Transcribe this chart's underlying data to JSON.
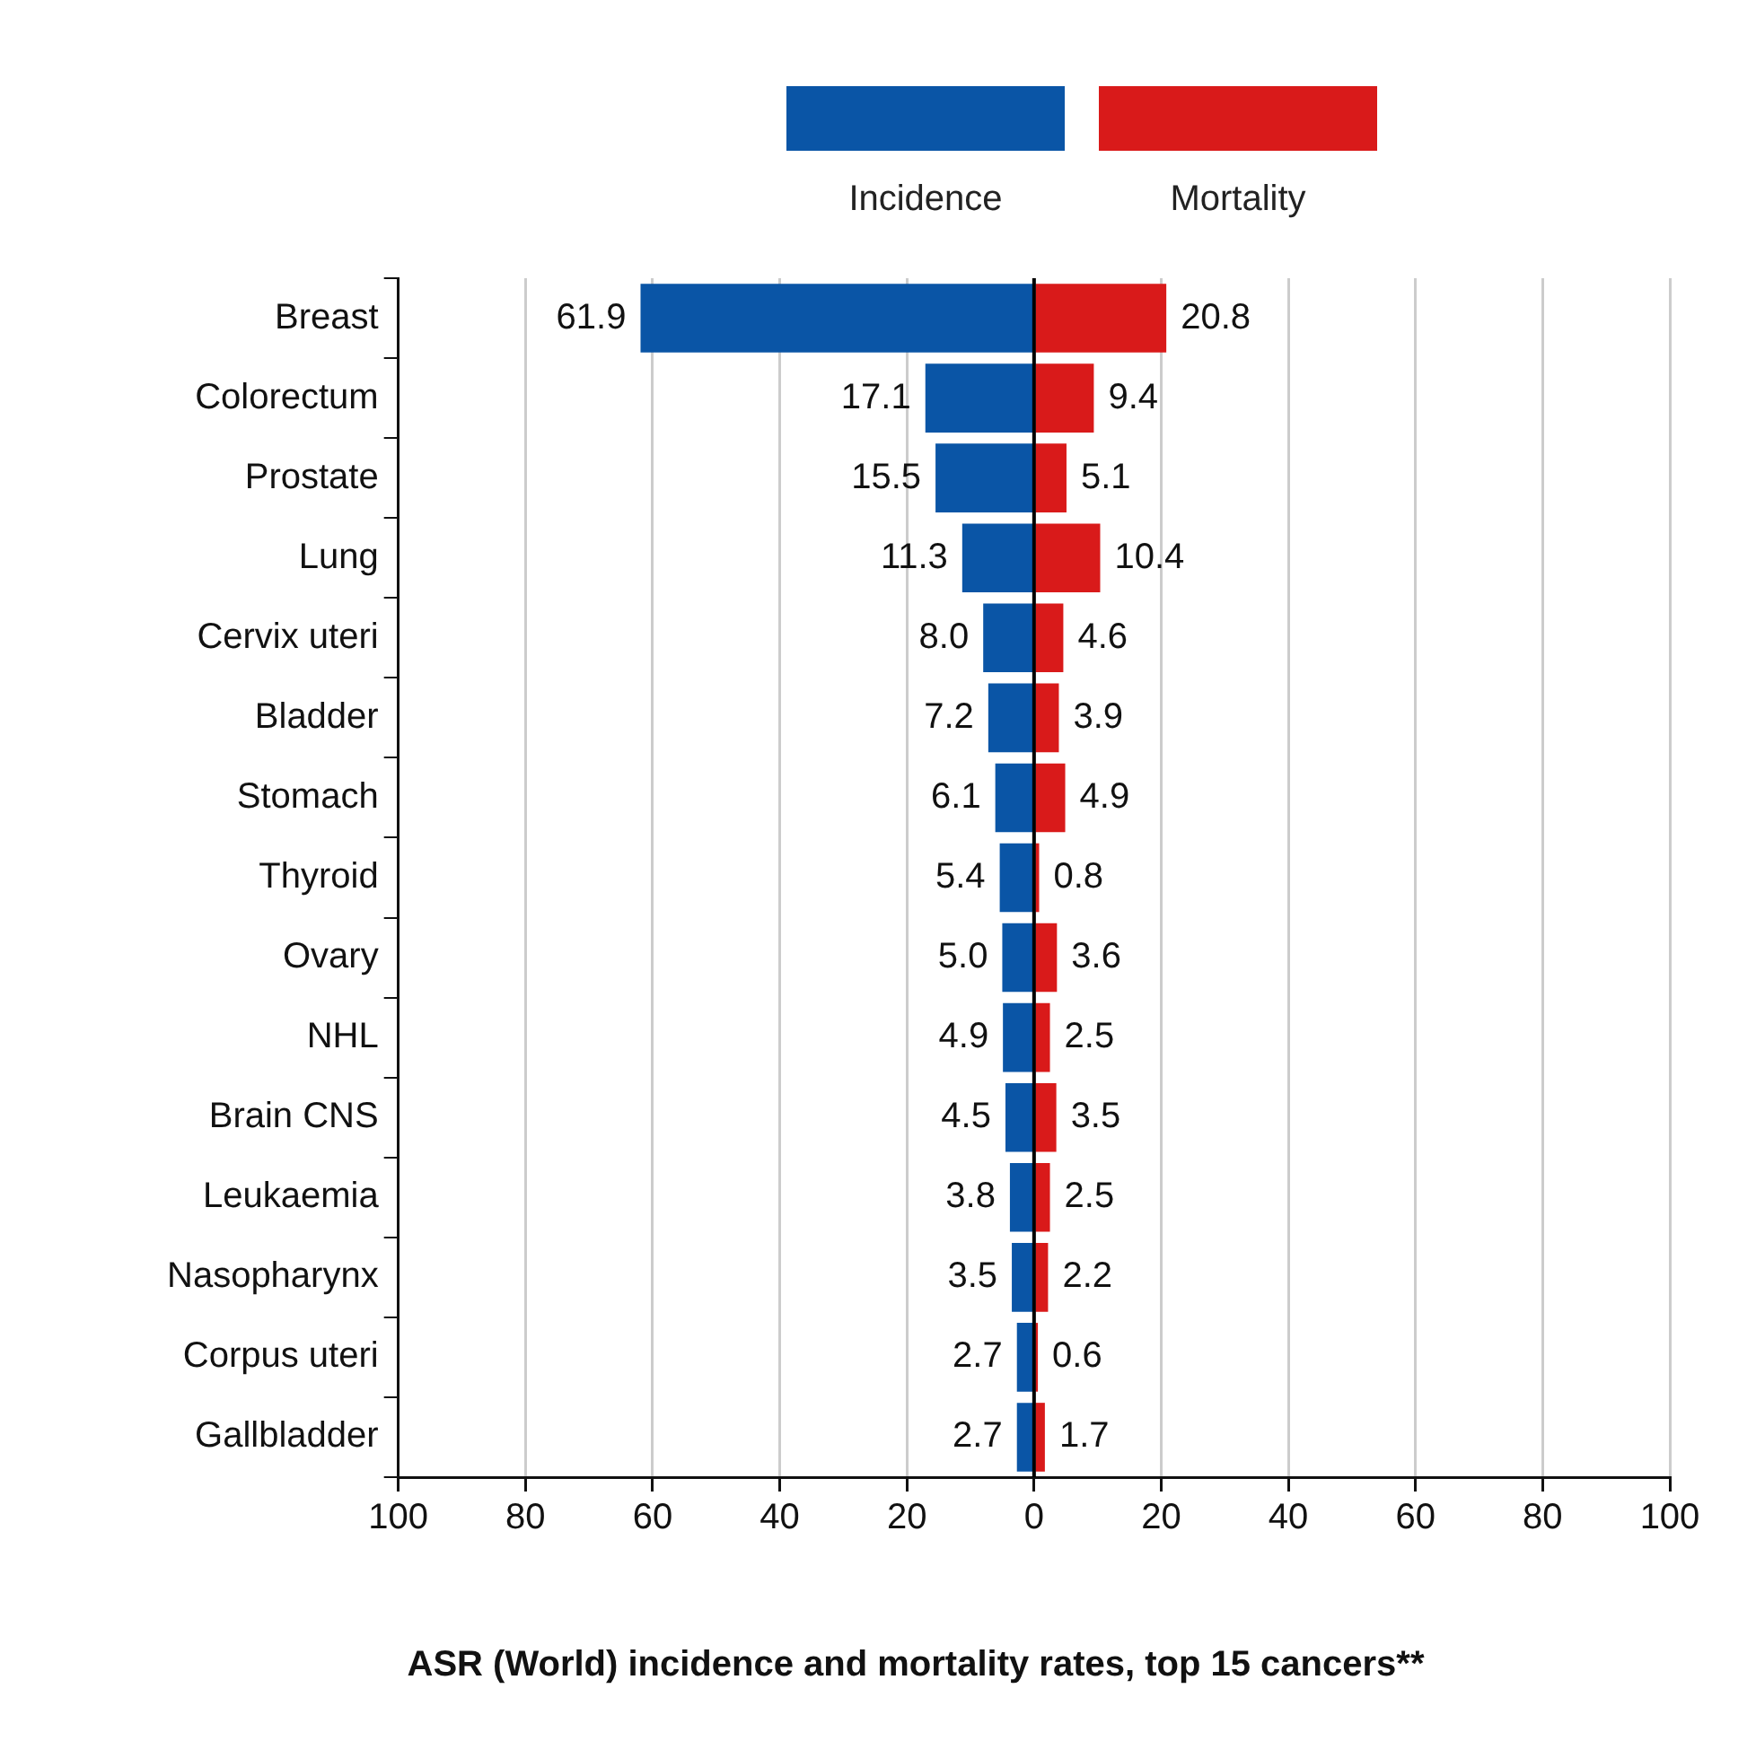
{
  "chart_data": {
    "type": "bar",
    "orientation": "horizontal",
    "stacked": true,
    "title": "ASR (World) incidence and mortality rates, top 15 cancers**",
    "categories": [
      "Breast",
      "Colorectum",
      "Prostate",
      "Lung",
      "Cervix uteri",
      "Bladder",
      "Stomach",
      "Thyroid",
      "Ovary",
      "NHL",
      "Brain CNS",
      "Leukaemia",
      "Nasopharynx",
      "Corpus uteri",
      "Gallbladder"
    ],
    "series": [
      {
        "name": "Incidence",
        "color": "#0a55a6",
        "values": [
          -61.9,
          -17.1,
          -15.5,
          -11.3,
          -8.0,
          -7.2,
          -6.1,
          -5.4,
          -5.0,
          -4.9,
          -4.5,
          -3.8,
          -3.5,
          -2.7,
          -2.7
        ]
      },
      {
        "name": "Mortality",
        "color": "#d91a1a",
        "values": [
          20.8,
          9.4,
          5.1,
          10.4,
          4.6,
          3.9,
          4.9,
          0.8,
          3.6,
          2.5,
          3.5,
          2.5,
          2.2,
          0.6,
          1.7
        ],
        "value_labels": [
          "20.8",
          "9.4",
          "5.1",
          "10.4",
          "4.6",
          "3.9",
          "4.9",
          "0.8",
          "3.6",
          "2.5",
          "3.5",
          "2.5",
          "2.2",
          "0.6",
          "1.7"
        ]
      }
    ],
    "annotations": [
      {
        "text": "61.9",
        "x": -61.9,
        "y": "Breast"
      },
      {
        "text": "17.1",
        "x": -17.1,
        "y": "Colorectum"
      },
      {
        "text": "15.5",
        "x": -15.5,
        "y": "Prostate"
      },
      {
        "text": "11.3",
        "x": -11.3,
        "y": "Lung"
      },
      {
        "text": "8.0",
        "x": -8.0,
        "y": "Cervix uteri"
      },
      {
        "text": "7.2",
        "x": -7.2,
        "y": "Bladder"
      },
      {
        "text": "6.1",
        "x": -6.1,
        "y": "Stomach"
      },
      {
        "text": "5.4",
        "x": -5.4,
        "y": "Thyroid"
      },
      {
        "text": "5.0",
        "x": -5.0,
        "y": "Ovary"
      },
      {
        "text": "4.9",
        "x": -4.9,
        "y": "NHL"
      },
      {
        "text": "4.5",
        "x": -4.5,
        "y": "Brain CNS"
      },
      {
        "text": "3.8",
        "x": -3.8,
        "y": "Leukaemia"
      },
      {
        "text": "3.5",
        "x": -3.5,
        "y": "Nasopharynx"
      },
      {
        "text": "2.7",
        "x": -2.7,
        "y": "Corpus uteri"
      },
      {
        "text": "2.7",
        "x": -2.7,
        "y": "Gallbladder"
      }
    ],
    "xlim": [
      -100,
      100
    ],
    "xticks": [
      {
        "value": -100,
        "label": "100"
      },
      {
        "value": -80,
        "label": "80"
      },
      {
        "value": -60,
        "label": "60"
      },
      {
        "value": -40,
        "label": "40"
      },
      {
        "value": -20,
        "label": "20"
      },
      0,
      20,
      40,
      60,
      80,
      100
    ],
    "ref_lines": [
      {
        "axis": "x",
        "value": 0,
        "color": "#000000"
      }
    ],
    "grid": "x",
    "legend": "top"
  }
}
